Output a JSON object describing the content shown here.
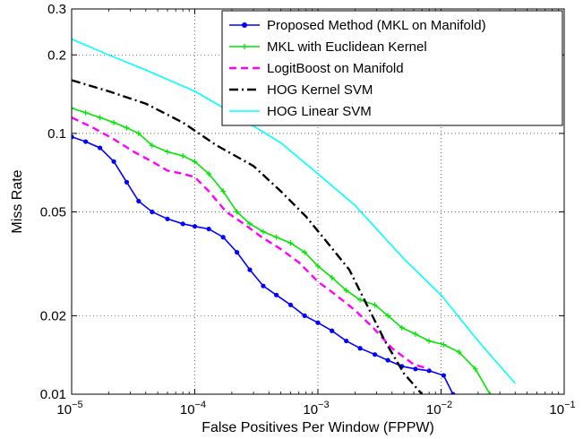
{
  "chart_data": {
    "type": "line",
    "xscale": "log",
    "yscale": "log",
    "xlabel": "False Positives Per Window (FPPW)",
    "ylabel": "Miss Rate",
    "xlim": [
      1e-05,
      0.1
    ],
    "ylim": [
      0.01,
      0.3
    ],
    "grid": true,
    "legend_position": "top-right",
    "x_ticks": [
      {
        "value": 1e-05,
        "base": "10",
        "exp": "−5"
      },
      {
        "value": 0.0001,
        "base": "10",
        "exp": "−4"
      },
      {
        "value": 0.001,
        "base": "10",
        "exp": "−3"
      },
      {
        "value": 0.01,
        "base": "10",
        "exp": "−2"
      },
      {
        "value": 0.1,
        "base": "10",
        "exp": "−1"
      }
    ],
    "y_ticks": [
      {
        "value": 0.01,
        "label": "0.01"
      },
      {
        "value": 0.02,
        "label": "0.02"
      },
      {
        "value": 0.05,
        "label": "0.05"
      },
      {
        "value": 0.1,
        "label": "0.1"
      },
      {
        "value": 0.2,
        "label": "0.2"
      },
      {
        "value": 0.3,
        "label": "0.3"
      }
    ],
    "series": [
      {
        "name": "Proposed Method (MKL on Manifold)",
        "color": "#0000ff",
        "style": "solid",
        "marker": "dot",
        "x": [
          1e-05,
          1.3e-05,
          1.7e-05,
          2.2e-05,
          2.8e-05,
          3.5e-05,
          4.5e-05,
          6e-05,
          8e-05,
          0.0001,
          0.00013,
          0.00017,
          0.00022,
          0.00028,
          0.00036,
          0.00046,
          0.0006,
          0.00078,
          0.001,
          0.0013,
          0.0017,
          0.0022,
          0.0029,
          0.0037,
          0.0048,
          0.0062,
          0.008,
          0.0105,
          0.0125
        ],
        "y": [
          0.097,
          0.093,
          0.088,
          0.078,
          0.065,
          0.055,
          0.05,
          0.047,
          0.045,
          0.044,
          0.043,
          0.04,
          0.035,
          0.03,
          0.026,
          0.024,
          0.022,
          0.02,
          0.0188,
          0.0175,
          0.016,
          0.015,
          0.0142,
          0.0135,
          0.0128,
          0.0125,
          0.0123,
          0.0118,
          0.01
        ]
      },
      {
        "name": "MKL with Euclidean Kernel",
        "color": "#00e600",
        "style": "solid",
        "marker": "plus",
        "x": [
          1e-05,
          1.3e-05,
          1.7e-05,
          2.2e-05,
          2.8e-05,
          3.5e-05,
          4.5e-05,
          6e-05,
          8e-05,
          0.0001,
          0.00013,
          0.00017,
          0.00022,
          0.00028,
          0.00036,
          0.00046,
          0.0006,
          0.00078,
          0.001,
          0.0013,
          0.0017,
          0.0022,
          0.0029,
          0.0037,
          0.0048,
          0.0062,
          0.008,
          0.0105,
          0.014,
          0.019,
          0.025
        ],
        "y": [
          0.125,
          0.12,
          0.115,
          0.11,
          0.105,
          0.1,
          0.09,
          0.085,
          0.082,
          0.078,
          0.07,
          0.06,
          0.05,
          0.045,
          0.042,
          0.04,
          0.038,
          0.035,
          0.031,
          0.028,
          0.025,
          0.023,
          0.022,
          0.02,
          0.018,
          0.017,
          0.016,
          0.0155,
          0.0145,
          0.0125,
          0.01
        ]
      },
      {
        "name": "LogitBoost on Manifold",
        "color": "#ff00ff",
        "style": "dashed",
        "marker": "none",
        "x": [
          1e-05,
          1.5e-05,
          2.2e-05,
          3.2e-05,
          4.5e-05,
          6e-05,
          8e-05,
          0.0001,
          0.00013,
          0.00018,
          0.00025,
          0.00035,
          0.0005,
          0.0007,
          0.001,
          0.0014,
          0.002,
          0.0028,
          0.004,
          0.006,
          0.008
        ],
        "y": [
          0.115,
          0.105,
          0.095,
          0.085,
          0.078,
          0.072,
          0.07,
          0.068,
          0.06,
          0.05,
          0.045,
          0.04,
          0.036,
          0.032,
          0.027,
          0.024,
          0.021,
          0.018,
          0.015,
          0.013,
          0.0125
        ]
      },
      {
        "name": "HOG Kernel SVM",
        "color": "#000000",
        "style": "dashdot",
        "marker": "none",
        "x": [
          1e-05,
          2e-05,
          4e-05,
          8e-05,
          0.00015,
          0.0003,
          0.0005,
          0.0008,
          0.0012,
          0.0018,
          0.0025,
          0.0035,
          0.005,
          0.007
        ],
        "y": [
          0.16,
          0.145,
          0.13,
          0.11,
          0.09,
          0.075,
          0.06,
          0.048,
          0.038,
          0.03,
          0.022,
          0.016,
          0.012,
          0.01
        ]
      },
      {
        "name": "HOG Linear SVM",
        "color": "#00ffff",
        "style": "solid",
        "marker": "none",
        "x": [
          1e-05,
          2e-05,
          4e-05,
          0.0001,
          0.0002,
          0.0005,
          0.001,
          0.002,
          0.005,
          0.01,
          0.02,
          0.04
        ],
        "y": [
          0.23,
          0.2,
          0.175,
          0.145,
          0.12,
          0.092,
          0.07,
          0.053,
          0.033,
          0.024,
          0.016,
          0.011
        ]
      }
    ]
  }
}
